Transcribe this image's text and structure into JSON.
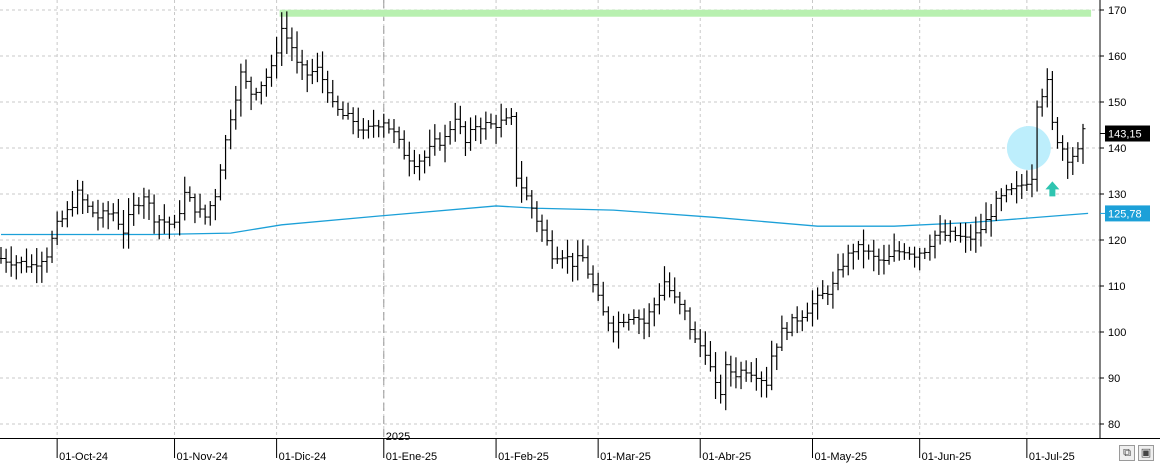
{
  "chart_data": {
    "type": "ohlc",
    "title": "",
    "xlabel": "",
    "ylabel": "",
    "ylim": [
      78,
      173
    ],
    "y_ticks": [
      80,
      90,
      100,
      110,
      120,
      130,
      140,
      150,
      160,
      170
    ],
    "x_ticks": [
      "01-Oct-24",
      "01-Nov-24",
      "01-Dic-24",
      "01-Ene-25",
      "01-Feb-25",
      "01-Mar-25",
      "01-Abr-25",
      "01-May-25",
      "01-Jun-25",
      "01-Jul-25"
    ],
    "x_tick_bars": [
      11,
      34,
      54,
      75,
      97,
      117,
      137,
      159,
      180,
      201
    ],
    "year_marker": {
      "label": "2025",
      "bar": 75
    },
    "num_bars": 213,
    "grid": true,
    "last_price": {
      "label": "143,15",
      "value": 143.15
    },
    "moving_average": {
      "label": "125,78",
      "value": 125.78,
      "color": "#1ca0d8",
      "points": [
        [
          0,
          121.2
        ],
        [
          30,
          121.2
        ],
        [
          45,
          121.5
        ],
        [
          55,
          123.3
        ],
        [
          75,
          125.3
        ],
        [
          97,
          127.4
        ],
        [
          105,
          126.9
        ],
        [
          120,
          126.5
        ],
        [
          140,
          124.9
        ],
        [
          160,
          123.0
        ],
        [
          175,
          123.0
        ],
        [
          190,
          123.8
        ],
        [
          213,
          125.78
        ]
      ]
    },
    "resistance_band": {
      "value": 169.3,
      "from_bar": 54,
      "to_bar": 213,
      "color": "#b8f0b0"
    },
    "annotations": {
      "circle": {
        "bar": 201,
        "value": 140,
        "color": "#bdeefc"
      },
      "arrow": {
        "bar": 206,
        "value": 131,
        "direction": "up",
        "color": "#2ec4b0"
      }
    },
    "price_anchors": [
      [
        0,
        116
      ],
      [
        6,
        114.5
      ],
      [
        9,
        117
      ],
      [
        11,
        123
      ],
      [
        13,
        126
      ],
      [
        15,
        130
      ],
      [
        17,
        127
      ],
      [
        19,
        125
      ],
      [
        22,
        126
      ],
      [
        24,
        122
      ],
      [
        26,
        127
      ],
      [
        28,
        130
      ],
      [
        30,
        125
      ],
      [
        32,
        124
      ],
      [
        34,
        123
      ],
      [
        36,
        130
      ],
      [
        38,
        127
      ],
      [
        40,
        125
      ],
      [
        42,
        130
      ],
      [
        43,
        136
      ],
      [
        45,
        147
      ],
      [
        47,
        156
      ],
      [
        49,
        152
      ],
      [
        51,
        154
      ],
      [
        53,
        157
      ],
      [
        55,
        166
      ],
      [
        57,
        162
      ],
      [
        58,
        158
      ],
      [
        60,
        156
      ],
      [
        62,
        157
      ],
      [
        64,
        153
      ],
      [
        65,
        149
      ],
      [
        67,
        147
      ],
      [
        69,
        146
      ],
      [
        71,
        143
      ],
      [
        73,
        145
      ],
      [
        75,
        146
      ],
      [
        77,
        143
      ],
      [
        79,
        139
      ],
      [
        81,
        137
      ],
      [
        83,
        138
      ],
      [
        85,
        141
      ],
      [
        87,
        142
      ],
      [
        89,
        147
      ],
      [
        91,
        141
      ],
      [
        93,
        145
      ],
      [
        96,
        145
      ],
      [
        100,
        146
      ],
      [
        101,
        134
      ],
      [
        104,
        127
      ],
      [
        106,
        122
      ],
      [
        108,
        117
      ],
      [
        110,
        117
      ],
      [
        112,
        115
      ],
      [
        114,
        116
      ],
      [
        116,
        110
      ],
      [
        118,
        104
      ],
      [
        120,
        101
      ],
      [
        122,
        103
      ],
      [
        124,
        104
      ],
      [
        126,
        102
      ],
      [
        128,
        106
      ],
      [
        130,
        111
      ],
      [
        132,
        107
      ],
      [
        134,
        104
      ],
      [
        136,
        98
      ],
      [
        138,
        96
      ],
      [
        140,
        88
      ],
      [
        141,
        87
      ],
      [
        142,
        92
      ],
      [
        144,
        91
      ],
      [
        146,
        92
      ],
      [
        148,
        91
      ],
      [
        150,
        89
      ],
      [
        151,
        95
      ],
      [
        153,
        100
      ],
      [
        155,
        102
      ],
      [
        157,
        104
      ],
      [
        159,
        106
      ],
      [
        161,
        108
      ],
      [
        163,
        110
      ],
      [
        165,
        115
      ],
      [
        167,
        118
      ],
      [
        169,
        118
      ],
      [
        171,
        116
      ],
      [
        173,
        115
      ],
      [
        175,
        117
      ],
      [
        177,
        118
      ],
      [
        179,
        117
      ],
      [
        181,
        118
      ],
      [
        183,
        121
      ],
      [
        185,
        121
      ],
      [
        187,
        121
      ],
      [
        189,
        120
      ],
      [
        191,
        121
      ],
      [
        193,
        124
      ],
      [
        195,
        128
      ],
      [
        197,
        130
      ],
      [
        199,
        131
      ],
      [
        200,
        132
      ],
      [
        201,
        133
      ],
      [
        202,
        134
      ],
      [
        203,
        150
      ],
      [
        205,
        154
      ],
      [
        206,
        145
      ],
      [
        207,
        142
      ],
      [
        209,
        138
      ],
      [
        211,
        139
      ],
      [
        212,
        143.15
      ]
    ]
  },
  "scrollbar": {
    "zoom_icon": "zoom-window-icon",
    "save_icon": "save-disk-icon"
  }
}
